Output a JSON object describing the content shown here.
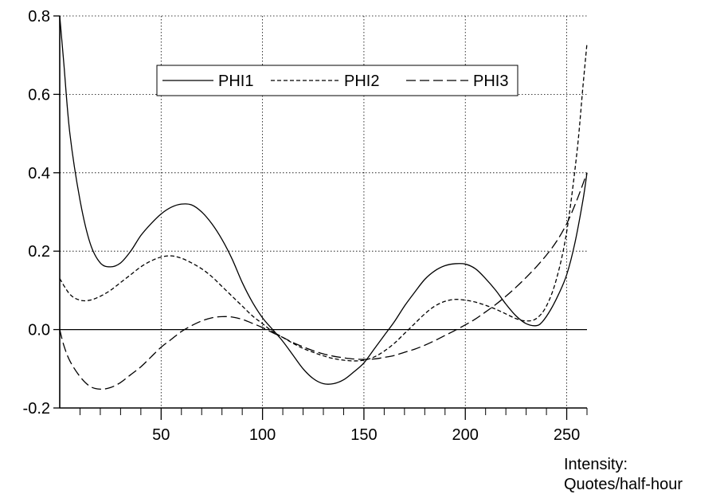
{
  "chart_data": {
    "type": "line",
    "title": "",
    "xlabel_lines": [
      "Intensity:",
      "Quotes/half-hour"
    ],
    "ylabel": "",
    "xlim": [
      0,
      260
    ],
    "ylim": [
      -0.2,
      0.8
    ],
    "x_ticks": [
      50,
      100,
      150,
      200,
      250
    ],
    "x_tick_labels": [
      "50",
      "100",
      "150",
      "200",
      "250"
    ],
    "y_ticks": [
      -0.2,
      0.0,
      0.2,
      0.4,
      0.6,
      0.8
    ],
    "y_tick_labels": [
      "-0.2",
      "0.0",
      "0.2",
      "0.4",
      "0.6",
      "0.8"
    ],
    "grid": true,
    "legend_position": "top",
    "series": [
      {
        "name": "PHI1",
        "style": "solid",
        "x": [
          0,
          2,
          5,
          10,
          15,
          20,
          25,
          30,
          35,
          40,
          45,
          50,
          55,
          60,
          65,
          70,
          75,
          80,
          85,
          90,
          95,
          100,
          105,
          110,
          115,
          120,
          125,
          130,
          135,
          140,
          145,
          150,
          155,
          160,
          165,
          170,
          175,
          180,
          185,
          190,
          195,
          200,
          205,
          210,
          215,
          220,
          225,
          230,
          235,
          238,
          242,
          246,
          250,
          254,
          258,
          260
        ],
        "y": [
          0.8,
          0.68,
          0.5,
          0.33,
          0.22,
          0.17,
          0.16,
          0.17,
          0.2,
          0.24,
          0.27,
          0.295,
          0.312,
          0.32,
          0.318,
          0.3,
          0.27,
          0.23,
          0.18,
          0.12,
          0.07,
          0.03,
          0.0,
          -0.03,
          -0.065,
          -0.1,
          -0.125,
          -0.138,
          -0.138,
          -0.128,
          -0.108,
          -0.085,
          -0.05,
          -0.015,
          0.02,
          0.06,
          0.095,
          0.128,
          0.15,
          0.163,
          0.168,
          0.167,
          0.155,
          0.13,
          0.1,
          0.065,
          0.035,
          0.015,
          0.01,
          0.02,
          0.05,
          0.09,
          0.14,
          0.22,
          0.33,
          0.4
        ]
      },
      {
        "name": "PHI2",
        "style": "dashed-short",
        "x": [
          0,
          5,
          10,
          15,
          20,
          25,
          30,
          35,
          40,
          45,
          50,
          55,
          60,
          65,
          70,
          75,
          80,
          85,
          90,
          95,
          100,
          105,
          110,
          115,
          120,
          125,
          130,
          135,
          140,
          145,
          150,
          155,
          160,
          165,
          170,
          175,
          180,
          185,
          190,
          195,
          200,
          205,
          210,
          215,
          220,
          225,
          230,
          235,
          240,
          245,
          250,
          255,
          258,
          260
        ],
        "y": [
          0.13,
          0.09,
          0.075,
          0.075,
          0.085,
          0.1,
          0.12,
          0.14,
          0.16,
          0.175,
          0.185,
          0.188,
          0.182,
          0.17,
          0.155,
          0.135,
          0.11,
          0.085,
          0.06,
          0.035,
          0.015,
          -0.005,
          -0.02,
          -0.035,
          -0.048,
          -0.058,
          -0.067,
          -0.074,
          -0.078,
          -0.08,
          -0.078,
          -0.07,
          -0.055,
          -0.035,
          -0.01,
          0.015,
          0.04,
          0.06,
          0.072,
          0.077,
          0.075,
          0.07,
          0.062,
          0.052,
          0.04,
          0.028,
          0.022,
          0.028,
          0.06,
          0.13,
          0.25,
          0.45,
          0.62,
          0.73
        ]
      },
      {
        "name": "PHI3",
        "style": "dashed-long",
        "x": [
          0,
          2,
          5,
          10,
          15,
          20,
          25,
          30,
          35,
          40,
          45,
          50,
          55,
          60,
          65,
          70,
          75,
          80,
          85,
          90,
          95,
          100,
          105,
          110,
          115,
          120,
          125,
          130,
          135,
          140,
          145,
          150,
          155,
          160,
          165,
          170,
          175,
          180,
          185,
          190,
          195,
          200,
          205,
          210,
          215,
          220,
          225,
          230,
          235,
          240,
          245,
          250,
          255,
          260
        ],
        "y": [
          0.0,
          -0.04,
          -0.08,
          -0.12,
          -0.145,
          -0.152,
          -0.148,
          -0.135,
          -0.115,
          -0.095,
          -0.07,
          -0.045,
          -0.025,
          -0.005,
          0.01,
          0.022,
          0.03,
          0.033,
          0.032,
          0.026,
          0.016,
          0.005,
          -0.008,
          -0.02,
          -0.033,
          -0.044,
          -0.054,
          -0.062,
          -0.068,
          -0.072,
          -0.075,
          -0.076,
          -0.075,
          -0.071,
          -0.066,
          -0.058,
          -0.05,
          -0.04,
          -0.028,
          -0.015,
          -0.002,
          0.012,
          0.027,
          0.045,
          0.064,
          0.085,
          0.108,
          0.133,
          0.16,
          0.19,
          0.225,
          0.27,
          0.33,
          0.4
        ]
      }
    ]
  }
}
